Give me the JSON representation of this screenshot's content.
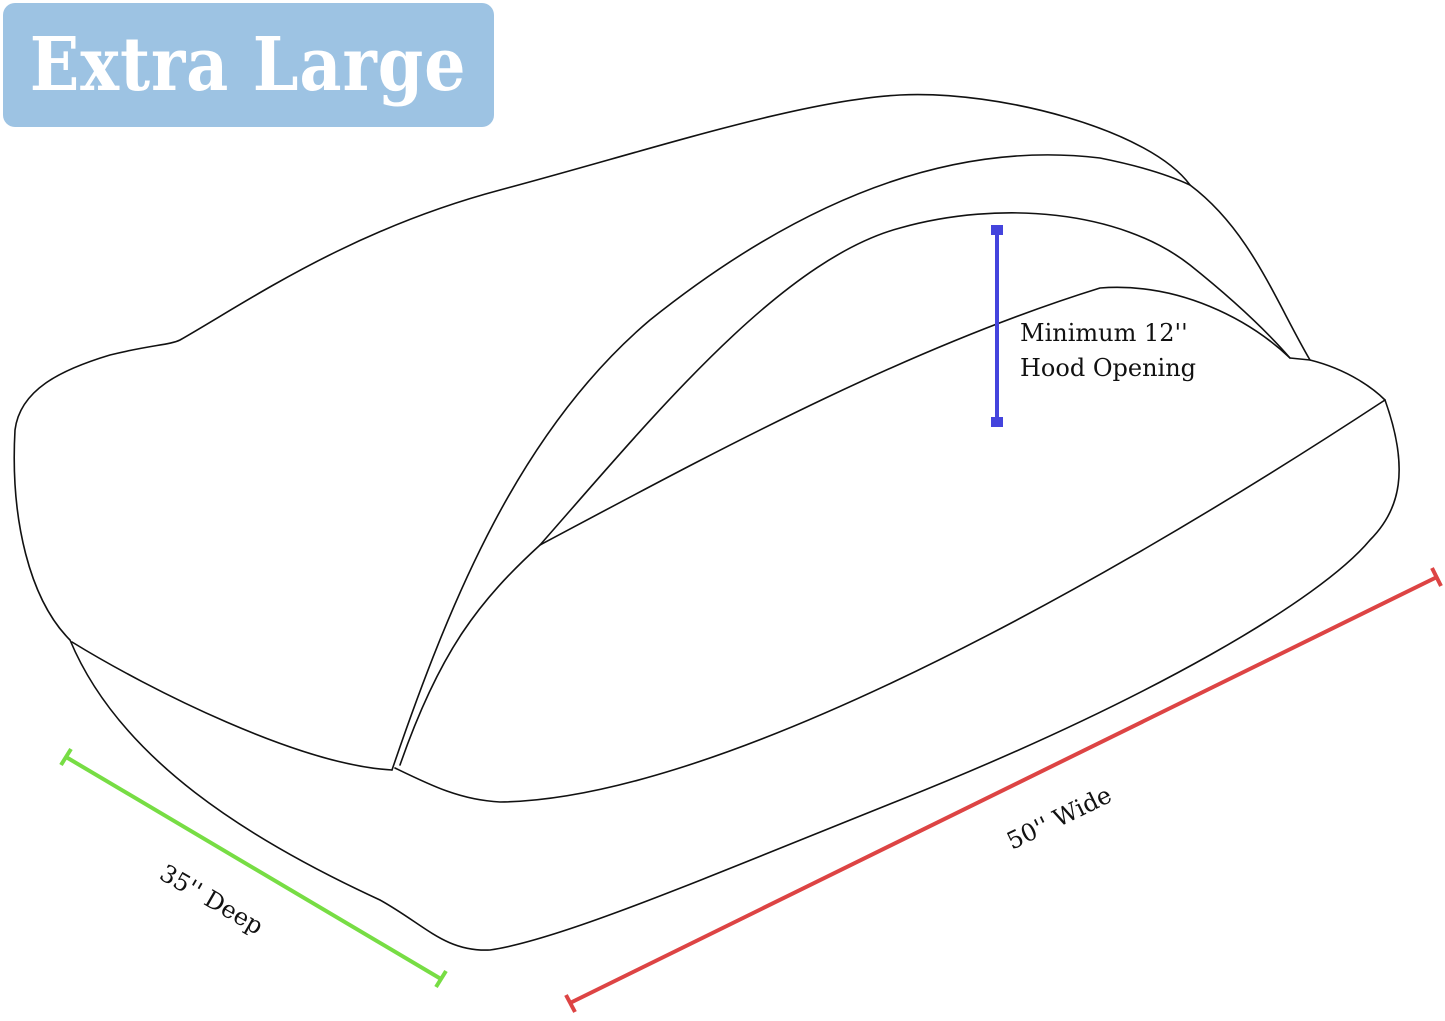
{
  "title": "Extra Large",
  "colors": {
    "badge": "#9dc3e3",
    "height_line": "#4444dd",
    "depth_line": "#77dd44",
    "width_line": "#dd4444"
  },
  "dimensions": {
    "hood_line1": "Minimum 12''",
    "hood_line2": "Hood Opening",
    "depth": "35'' Deep",
    "width": "50'' Wide"
  }
}
